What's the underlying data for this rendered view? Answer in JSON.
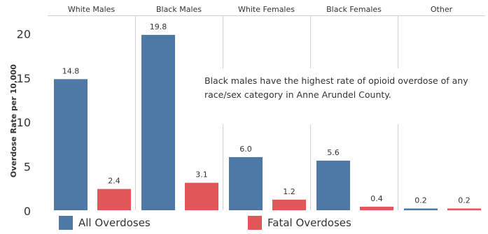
{
  "chart_data": {
    "type": "bar",
    "title": "",
    "xlabel": "",
    "ylabel": "Overdose Rate per 10,000",
    "ylim": [
      0,
      22
    ],
    "yticks": [
      0,
      5,
      10,
      15,
      20
    ],
    "grid": false,
    "legend_position": "bottom-left",
    "categories": [
      "White Males",
      "Black Males",
      "White Females",
      "Black Females",
      "Other"
    ],
    "series": [
      {
        "name": "All Overdoses",
        "color": "#4e79a7",
        "values": [
          14.8,
          19.8,
          6.0,
          5.6,
          0.2
        ],
        "labels": [
          "14.8",
          "19.8",
          "6.0",
          "5.6",
          "0.2"
        ]
      },
      {
        "name": "Fatal Overdoses",
        "color": "#e15759",
        "values": [
          2.4,
          3.1,
          1.2,
          0.4,
          0.2
        ],
        "labels": [
          "2.4",
          "3.1",
          "1.2",
          "0.4",
          "0.2"
        ]
      }
    ],
    "annotation": "Black males have the highest rate of opioid overdose of any race/sex category in Anne Arundel County."
  }
}
